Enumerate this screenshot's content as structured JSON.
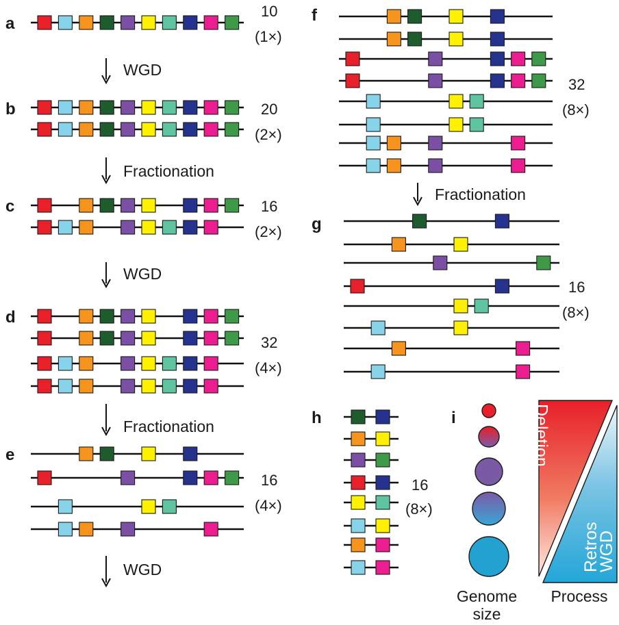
{
  "colors": {
    "red": "#e8202a",
    "cyan": "#87d3ea",
    "orange": "#f7941d",
    "dkgreen": "#1e5c2e",
    "purple": "#7b4fa3",
    "yellow": "#fff200",
    "teal": "#5fc4a0",
    "navy": "#25338f",
    "pink": "#ec1d8f",
    "green": "#3e9a48"
  },
  "gene_order": [
    "red",
    "cyan",
    "orange",
    "dkgreen",
    "purple",
    "yellow",
    "teal",
    "navy",
    "pink",
    "green"
  ],
  "panels": [
    {
      "label": "a",
      "count": "10",
      "ploidy": "(1×)",
      "rows": [
        [
          1,
          1,
          1,
          1,
          1,
          1,
          1,
          1,
          1,
          1
        ]
      ]
    },
    {
      "label": "b",
      "count": "20",
      "ploidy": "(2×)",
      "rows": [
        [
          1,
          1,
          1,
          1,
          1,
          1,
          1,
          1,
          1,
          1
        ],
        [
          1,
          1,
          1,
          1,
          1,
          1,
          1,
          1,
          1,
          1
        ]
      ]
    },
    {
      "label": "c",
      "count": "16",
      "ploidy": "(2×)",
      "rows": [
        [
          1,
          0,
          1,
          1,
          1,
          1,
          0,
          1,
          1,
          1
        ],
        [
          1,
          1,
          1,
          0,
          1,
          1,
          1,
          1,
          1,
          0
        ]
      ]
    },
    {
      "label": "d",
      "count": "32",
      "ploidy": "(4×)",
      "rows": [
        [
          1,
          0,
          1,
          1,
          1,
          1,
          0,
          1,
          1,
          1
        ],
        [
          1,
          0,
          1,
          1,
          1,
          1,
          0,
          1,
          1,
          1
        ],
        [
          1,
          1,
          1,
          0,
          1,
          1,
          1,
          1,
          1,
          0
        ],
        [
          1,
          1,
          1,
          0,
          1,
          1,
          1,
          1,
          1,
          0
        ]
      ]
    },
    {
      "label": "e",
      "count": "16",
      "ploidy": "(4×)",
      "rows": [
        [
          0,
          0,
          1,
          1,
          0,
          1,
          0,
          1,
          0,
          0
        ],
        [
          1,
          0,
          0,
          0,
          1,
          0,
          0,
          1,
          1,
          1
        ],
        [
          0,
          1,
          0,
          0,
          0,
          1,
          1,
          0,
          0,
          0
        ],
        [
          0,
          1,
          1,
          0,
          1,
          0,
          0,
          0,
          1,
          0
        ]
      ]
    },
    {
      "label": "f",
      "count": "32",
      "ploidy": "(8×)",
      "rows": [
        [
          0,
          0,
          1,
          1,
          0,
          1,
          0,
          1,
          0,
          0
        ],
        [
          0,
          0,
          1,
          1,
          0,
          1,
          0,
          1,
          0,
          0
        ],
        [
          1,
          0,
          0,
          0,
          1,
          0,
          0,
          1,
          1,
          1
        ],
        [
          1,
          0,
          0,
          0,
          1,
          0,
          0,
          1,
          1,
          1
        ],
        [
          0,
          1,
          0,
          0,
          0,
          1,
          1,
          0,
          0,
          0
        ],
        [
          0,
          1,
          0,
          0,
          0,
          1,
          1,
          0,
          0,
          0
        ],
        [
          0,
          1,
          1,
          0,
          1,
          0,
          0,
          0,
          1,
          0
        ],
        [
          0,
          1,
          1,
          0,
          1,
          0,
          0,
          0,
          1,
          0
        ]
      ]
    },
    {
      "label": "g",
      "count": "16",
      "ploidy": "(8×)",
      "rows": [
        [
          0,
          0,
          0,
          1,
          0,
          0,
          0,
          1,
          0,
          0
        ],
        [
          0,
          0,
          1,
          0,
          0,
          1,
          0,
          0,
          0,
          0
        ],
        [
          0,
          0,
          0,
          0,
          1,
          0,
          0,
          0,
          0,
          1
        ],
        [
          1,
          0,
          0,
          0,
          0,
          0,
          0,
          1,
          0,
          0
        ],
        [
          0,
          0,
          0,
          0,
          0,
          1,
          1,
          0,
          0,
          0
        ],
        [
          0,
          1,
          0,
          0,
          0,
          1,
          0,
          0,
          0,
          0
        ],
        [
          0,
          0,
          1,
          0,
          0,
          0,
          0,
          0,
          1,
          0
        ],
        [
          0,
          1,
          0,
          0,
          0,
          0,
          0,
          0,
          1,
          0
        ]
      ]
    },
    {
      "label": "h",
      "count": "16",
      "ploidy": "(8×)",
      "pairs": [
        [
          "dkgreen",
          "navy"
        ],
        [
          "orange",
          "yellow"
        ],
        [
          "purple",
          "green"
        ],
        [
          "red",
          "navy"
        ],
        [
          "yellow",
          "teal"
        ],
        [
          "cyan",
          "yellow"
        ],
        [
          "orange",
          "pink"
        ],
        [
          "cyan",
          "pink"
        ]
      ]
    },
    {
      "label": "i"
    }
  ],
  "steps": [
    "WGD",
    "Fractionation",
    "WGD",
    "Fractionation",
    "WGD",
    "Fractionation"
  ],
  "genome_size_label": [
    "Genome",
    "size"
  ],
  "process_label": "Process",
  "triangle_top": "Deletion",
  "triangle_bottom": [
    "Retros",
    "WGD"
  ]
}
